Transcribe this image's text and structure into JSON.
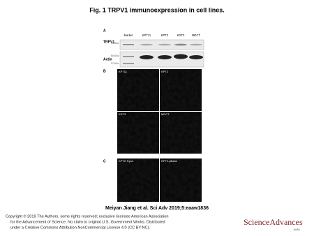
{
  "title": "Fig. 1 TRPV1 immunoexpression in cell lines.",
  "figure": {
    "panel_a": {
      "label": "A",
      "lanes": [
        "Marker",
        "KPT11",
        "KPT2",
        "KDT3",
        "MDCT"
      ],
      "rows": [
        {
          "name": "TRPV1",
          "markers": [
            "75 kDa"
          ]
        },
        {
          "name": "Actin",
          "markers": [
            "50 kDa",
            "37 kDa"
          ]
        }
      ]
    },
    "panel_b": {
      "label": "B",
      "images": [
        "KPT11",
        "KPT2",
        "KDT3",
        "MDCT"
      ]
    },
    "panel_c": {
      "label": "C",
      "images": [
        "KPT2-Trpv1",
        "KPT2-pBabe"
      ]
    }
  },
  "citation": "Meiyan Jiang et al. Sci Adv 2019;5:eaaw1836",
  "copyright": [
    "Copyright © 2019 The Authors, some rights reserved; exclusive licensee American Association",
    "for the Advancement of Science. No claim to original U.S. Government Works. Distributed",
    "under a Creative Commons Attribution NonCommercial License 4.0 (CC BY-NC)."
  ],
  "logo": {
    "name": "ScienceAdvances",
    "publisher": "AAAS"
  }
}
